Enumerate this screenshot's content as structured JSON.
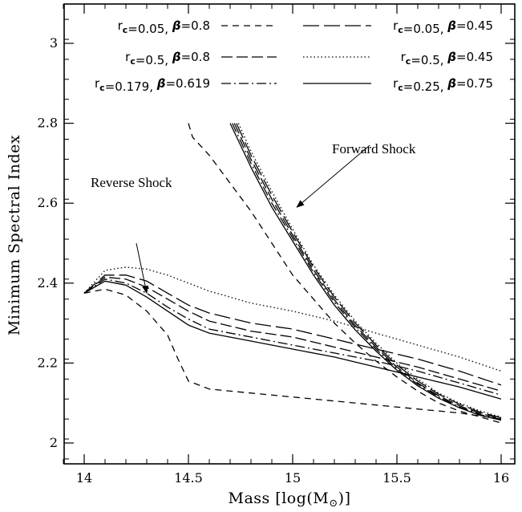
{
  "chart_data": {
    "type": "line",
    "xlabel": "Mass [log(M⊙)]",
    "ylabel": "Minimum Spectral Index",
    "xlim": [
      13.9,
      16.05
    ],
    "ylim": [
      1.95,
      3.1
    ],
    "xticks": [
      "14",
      "14.5",
      "15",
      "15.5",
      "16"
    ],
    "yticks": [
      "2",
      "2.2",
      "2.4",
      "2.6",
      "2.8",
      "3"
    ],
    "grid": false,
    "legend_placement": "top",
    "annotations": [
      {
        "text": "Forward Shock",
        "arrow_from": [
          15.37,
          2.745
        ],
        "arrow_to": [
          15.02,
          2.59
        ]
      },
      {
        "text": "Reverse Shock",
        "arrow_from": [
          14.25,
          2.5
        ],
        "arrow_to": [
          14.3,
          2.375
        ]
      }
    ],
    "series": [
      {
        "name": "rc=0.05, β=0.8",
        "label_rc": "0.05",
        "label_beta": "0.8",
        "dash": "8,6",
        "group": "reverse",
        "x": [
          14,
          14.1,
          14.2,
          14.3,
          14.4,
          14.45,
          14.5,
          14.6,
          14.8,
          15,
          15.2,
          15.4,
          15.6,
          15.8,
          16
        ],
        "y": [
          2.375,
          2.385,
          2.37,
          2.33,
          2.27,
          2.21,
          2.155,
          2.135,
          2.125,
          2.115,
          2.105,
          2.095,
          2.085,
          2.075,
          2.06
        ]
      },
      {
        "name": "rc=0.05, β=0.8 (forward)",
        "label_rc": "0.05",
        "label_beta": "0.8",
        "dash": "8,6",
        "group": "forward",
        "x": [
          14.5,
          14.52,
          14.6,
          14.7,
          14.8,
          14.9,
          15,
          15.1,
          15.2,
          15.3,
          15.4,
          15.5,
          15.6,
          15.7,
          15.8,
          15.9,
          16
        ],
        "y": [
          2.8,
          2.765,
          2.72,
          2.65,
          2.58,
          2.5,
          2.42,
          2.36,
          2.3,
          2.25,
          2.205,
          2.165,
          2.13,
          2.1,
          2.08,
          2.065,
          2.05
        ]
      },
      {
        "name": "rc=0.05, β=0.45",
        "label_rc": "0.05",
        "label_beta": "0.45",
        "dash": "20,6",
        "group": "reverse",
        "x": [
          14,
          14.1,
          14.2,
          14.3,
          14.4,
          14.5,
          14.6,
          14.8,
          15,
          15.2,
          15.4,
          15.6,
          15.8,
          16
        ],
        "y": [
          2.375,
          2.42,
          2.42,
          2.405,
          2.375,
          2.345,
          2.325,
          2.3,
          2.285,
          2.26,
          2.235,
          2.21,
          2.18,
          2.145
        ]
      },
      {
        "name": "rc=0.5, β=0.8",
        "label_rc": "0.5",
        "label_beta": "0.8",
        "dash": "14,5",
        "group": "reverse",
        "x": [
          14,
          14.1,
          14.2,
          14.3,
          14.4,
          14.5,
          14.6,
          14.8,
          15,
          15.2,
          15.4,
          15.6,
          15.8,
          16
        ],
        "y": [
          2.375,
          2.415,
          2.41,
          2.39,
          2.36,
          2.33,
          2.305,
          2.28,
          2.265,
          2.24,
          2.215,
          2.19,
          2.16,
          2.13
        ]
      },
      {
        "name": "rc=0.5, β=0.45",
        "label_rc": "0.5",
        "label_beta": "0.45",
        "dash": "1.5,3",
        "group": "reverse",
        "x": [
          14,
          14.1,
          14.2,
          14.3,
          14.4,
          14.5,
          14.6,
          14.8,
          15,
          15.2,
          15.4,
          15.6,
          15.8,
          16
        ],
        "y": [
          2.375,
          2.432,
          2.44,
          2.435,
          2.42,
          2.4,
          2.38,
          2.35,
          2.33,
          2.305,
          2.275,
          2.245,
          2.215,
          2.18
        ]
      },
      {
        "name": "rc=0.179, β=0.619",
        "label_rc": "0.179",
        "label_beta": "0.619",
        "dash": "12,4,2,4",
        "group": "reverse",
        "x": [
          14,
          14.1,
          14.2,
          14.3,
          14.4,
          14.5,
          14.6,
          14.8,
          15,
          15.2,
          15.4,
          15.6,
          15.8,
          16
        ],
        "y": [
          2.375,
          2.41,
          2.4,
          2.375,
          2.34,
          2.31,
          2.285,
          2.265,
          2.245,
          2.225,
          2.205,
          2.18,
          2.15,
          2.12
        ]
      },
      {
        "name": "rc=0.25, β=0.75",
        "label_rc": "0.25",
        "label_beta": "0.75",
        "dash": "",
        "group": "reverse",
        "x": [
          14,
          14.1,
          14.2,
          14.3,
          14.4,
          14.5,
          14.6,
          14.8,
          15,
          15.2,
          15.4,
          15.6,
          15.8,
          16
        ],
        "y": [
          2.375,
          2.405,
          2.395,
          2.365,
          2.33,
          2.295,
          2.275,
          2.255,
          2.235,
          2.215,
          2.19,
          2.165,
          2.14,
          2.11
        ]
      },
      {
        "name": "rc=0.5, β=0.45 (forward)",
        "label_rc": "0.5",
        "label_beta": "0.45",
        "dash": "1.5,3",
        "group": "forward",
        "x": [
          14.74,
          14.8,
          14.9,
          15,
          15.1,
          15.2,
          15.3,
          15.4,
          15.5,
          15.6,
          15.7,
          15.8,
          15.9,
          16
        ],
        "y": [
          2.8,
          2.73,
          2.63,
          2.535,
          2.445,
          2.37,
          2.305,
          2.25,
          2.2,
          2.16,
          2.125,
          2.1,
          2.08,
          2.065
        ]
      },
      {
        "name": "rc=0.05, β=0.45 (forward)",
        "label_rc": "0.05",
        "label_beta": "0.45",
        "dash": "20,6",
        "group": "forward",
        "x": [
          14.73,
          14.8,
          14.9,
          15,
          15.1,
          15.2,
          15.3,
          15.4,
          15.5,
          15.6,
          15.7,
          15.8,
          15.9,
          16
        ],
        "y": [
          2.8,
          2.72,
          2.62,
          2.528,
          2.44,
          2.365,
          2.3,
          2.245,
          2.195,
          2.155,
          2.122,
          2.097,
          2.077,
          2.063
        ]
      },
      {
        "name": "rc=0.5, β=0.8 (forward)",
        "label_rc": "0.5",
        "label_beta": "0.8",
        "dash": "14,5",
        "group": "forward",
        "x": [
          14.72,
          14.8,
          14.9,
          15,
          15.1,
          15.2,
          15.3,
          15.4,
          15.5,
          15.6,
          15.7,
          15.8,
          15.9,
          16
        ],
        "y": [
          2.8,
          2.71,
          2.61,
          2.52,
          2.433,
          2.358,
          2.294,
          2.24,
          2.19,
          2.15,
          2.118,
          2.093,
          2.074,
          2.06
        ]
      },
      {
        "name": "rc=0.179, β=0.619 (forward)",
        "label_rc": "0.179",
        "label_beta": "0.619",
        "dash": "12,4,2,4",
        "group": "forward",
        "x": [
          14.71,
          14.8,
          14.9,
          15,
          15.1,
          15.2,
          15.3,
          15.4,
          15.5,
          15.6,
          15.7,
          15.8,
          15.9,
          16
        ],
        "y": [
          2.8,
          2.7,
          2.6,
          2.513,
          2.427,
          2.352,
          2.289,
          2.235,
          2.186,
          2.147,
          2.115,
          2.09,
          2.071,
          2.058
        ]
      },
      {
        "name": "rc=0.25, β=0.75 (forward)",
        "label_rc": "0.25",
        "label_beta": "0.75",
        "dash": "",
        "group": "forward",
        "x": [
          14.7,
          14.8,
          14.9,
          15,
          15.1,
          15.2,
          15.3,
          15.4,
          15.5,
          15.6,
          15.7,
          15.8,
          15.9,
          16
        ],
        "y": [
          2.8,
          2.69,
          2.59,
          2.505,
          2.42,
          2.345,
          2.283,
          2.23,
          2.182,
          2.143,
          2.112,
          2.088,
          2.069,
          2.057
        ]
      }
    ],
    "legend": [
      {
        "rc": "0.05",
        "beta": "0.8",
        "dash": "8,6"
      },
      {
        "rc": "0.05",
        "beta": "0.45",
        "dash": "20,6"
      },
      {
        "rc": "0.5",
        "beta": "0.8",
        "dash": "14,5"
      },
      {
        "rc": "0.5",
        "beta": "0.45",
        "dash": "1.5,3"
      },
      {
        "rc": "0.179",
        "beta": "0.619",
        "dash": "12,4,2,4"
      },
      {
        "rc": "0.25",
        "beta": "0.75",
        "dash": ""
      }
    ]
  }
}
